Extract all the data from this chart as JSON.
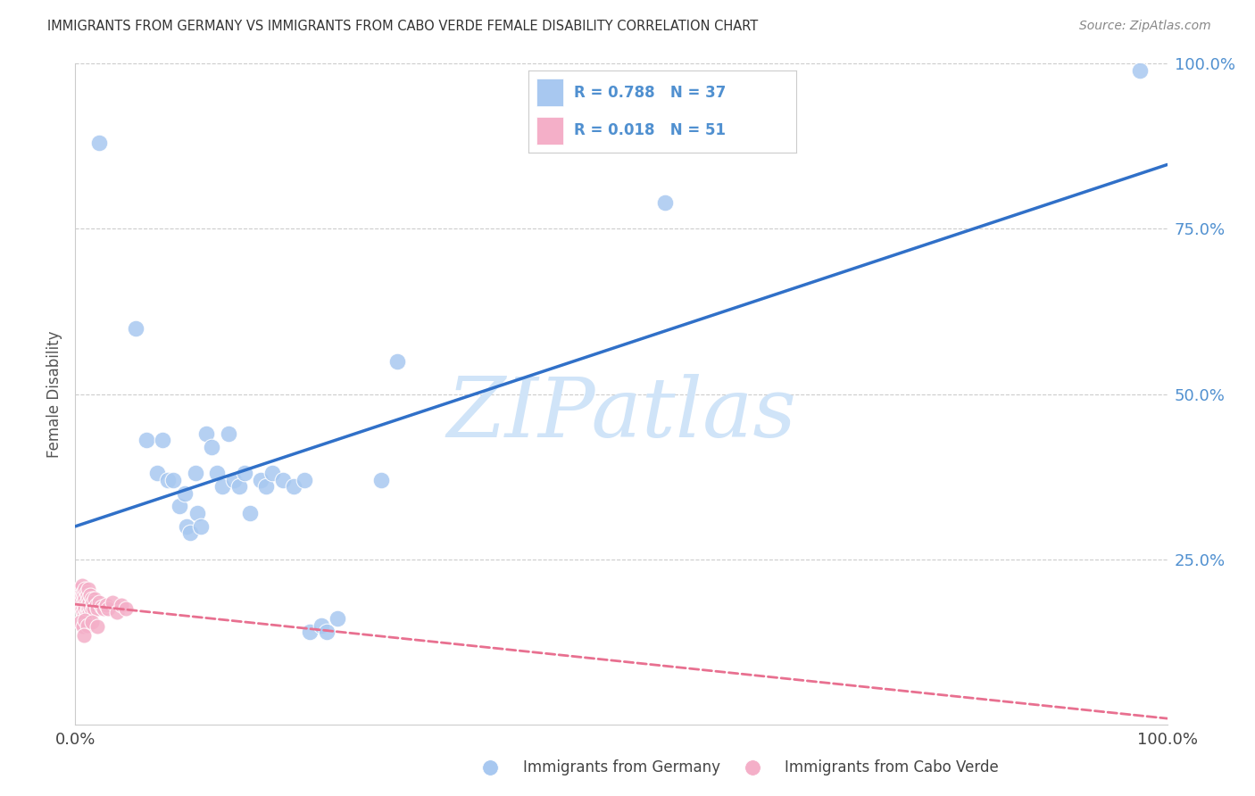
{
  "title": "IMMIGRANTS FROM GERMANY VS IMMIGRANTS FROM CABO VERDE FEMALE DISABILITY CORRELATION CHART",
  "source": "Source: ZipAtlas.com",
  "ylabel": "Female Disability",
  "xlim": [
    0.0,
    1.0
  ],
  "ylim": [
    0.0,
    1.0
  ],
  "germany_R": 0.788,
  "germany_N": 37,
  "caboverde_R": 0.018,
  "caboverde_N": 51,
  "germany_color": "#a8c8f0",
  "caboverde_color": "#f4afc8",
  "germany_line_color": "#3070c8",
  "caboverde_line_color": "#e87090",
  "watermark_text": "ZIPatlas",
  "watermark_color": "#d0e4f8",
  "background_color": "#ffffff",
  "grid_color": "#cccccc",
  "tick_color_right": "#5090d0",
  "germany_scatter": [
    [
      0.022,
      0.88
    ],
    [
      0.055,
      0.6
    ],
    [
      0.065,
      0.43
    ],
    [
      0.075,
      0.38
    ],
    [
      0.08,
      0.43
    ],
    [
      0.085,
      0.37
    ],
    [
      0.09,
      0.37
    ],
    [
      0.095,
      0.33
    ],
    [
      0.1,
      0.35
    ],
    [
      0.102,
      0.3
    ],
    [
      0.105,
      0.29
    ],
    [
      0.11,
      0.38
    ],
    [
      0.112,
      0.32
    ],
    [
      0.115,
      0.3
    ],
    [
      0.12,
      0.44
    ],
    [
      0.125,
      0.42
    ],
    [
      0.13,
      0.38
    ],
    [
      0.135,
      0.36
    ],
    [
      0.14,
      0.44
    ],
    [
      0.145,
      0.37
    ],
    [
      0.15,
      0.36
    ],
    [
      0.155,
      0.38
    ],
    [
      0.16,
      0.32
    ],
    [
      0.17,
      0.37
    ],
    [
      0.175,
      0.36
    ],
    [
      0.18,
      0.38
    ],
    [
      0.19,
      0.37
    ],
    [
      0.2,
      0.36
    ],
    [
      0.21,
      0.37
    ],
    [
      0.215,
      0.14
    ],
    [
      0.225,
      0.15
    ],
    [
      0.23,
      0.14
    ],
    [
      0.24,
      0.16
    ],
    [
      0.28,
      0.37
    ],
    [
      0.295,
      0.55
    ],
    [
      0.54,
      0.79
    ],
    [
      0.975,
      0.99
    ]
  ],
  "caboverde_scatter": [
    [
      0.004,
      0.205
    ],
    [
      0.005,
      0.195
    ],
    [
      0.005,
      0.185
    ],
    [
      0.006,
      0.21
    ],
    [
      0.006,
      0.195
    ],
    [
      0.006,
      0.175
    ],
    [
      0.007,
      0.2
    ],
    [
      0.007,
      0.185
    ],
    [
      0.007,
      0.17
    ],
    [
      0.008,
      0.195
    ],
    [
      0.008,
      0.18
    ],
    [
      0.008,
      0.165
    ],
    [
      0.009,
      0.205
    ],
    [
      0.009,
      0.19
    ],
    [
      0.009,
      0.175
    ],
    [
      0.01,
      0.2
    ],
    [
      0.01,
      0.185
    ],
    [
      0.01,
      0.17
    ],
    [
      0.011,
      0.195
    ],
    [
      0.011,
      0.18
    ],
    [
      0.011,
      0.168
    ],
    [
      0.012,
      0.205
    ],
    [
      0.012,
      0.19
    ],
    [
      0.012,
      0.175
    ],
    [
      0.013,
      0.185
    ],
    [
      0.013,
      0.168
    ],
    [
      0.014,
      0.195
    ],
    [
      0.014,
      0.178
    ],
    [
      0.015,
      0.19
    ],
    [
      0.015,
      0.172
    ],
    [
      0.016,
      0.185
    ],
    [
      0.017,
      0.175
    ],
    [
      0.018,
      0.19
    ],
    [
      0.019,
      0.18
    ],
    [
      0.02,
      0.175
    ],
    [
      0.022,
      0.185
    ],
    [
      0.024,
      0.178
    ],
    [
      0.026,
      0.175
    ],
    [
      0.028,
      0.18
    ],
    [
      0.03,
      0.175
    ],
    [
      0.034,
      0.185
    ],
    [
      0.038,
      0.17
    ],
    [
      0.042,
      0.18
    ],
    [
      0.046,
      0.175
    ],
    [
      0.005,
      0.155
    ],
    [
      0.007,
      0.148
    ],
    [
      0.009,
      0.158
    ],
    [
      0.011,
      0.15
    ],
    [
      0.015,
      0.155
    ],
    [
      0.02,
      0.148
    ],
    [
      0.008,
      0.135
    ]
  ]
}
